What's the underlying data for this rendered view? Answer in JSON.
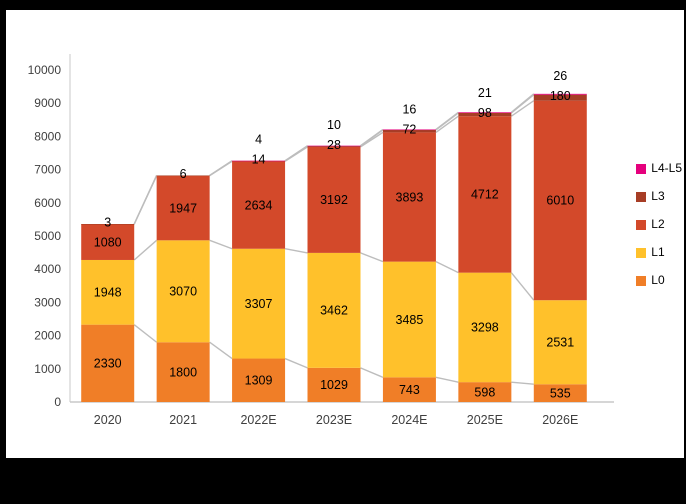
{
  "colors": {
    "page_background": "#000000",
    "panel_background": "#ffffff",
    "connector_line": "#bdbdbd",
    "axis_line": "#c8c8c8",
    "tick_text": "#3f3f3f",
    "value_text": "#000000"
  },
  "chart_data": {
    "type": "bar",
    "subtype": "stacked-column",
    "title": "",
    "xlabel": "",
    "ylabel": "",
    "categories": [
      "2020",
      "2021",
      "2022E",
      "2023E",
      "2024E",
      "2025E",
      "2026E"
    ],
    "series": [
      {
        "name": "L0",
        "color": "#f07e27",
        "values": [
          2330,
          1800,
          1309,
          1029,
          743,
          598,
          535
        ]
      },
      {
        "name": "L1",
        "color": "#ffc12b",
        "values": [
          1948,
          3070,
          3307,
          3462,
          3485,
          3298,
          2531
        ]
      },
      {
        "name": "L2",
        "color": "#d3492a",
        "values": [
          1080,
          1947,
          2634,
          3192,
          3893,
          4712,
          6010
        ]
      },
      {
        "name": "L3",
        "color": "#a73d25",
        "values": [
          3,
          6,
          14,
          28,
          72,
          98,
          180
        ]
      },
      {
        "name": "L4-L5",
        "color": "#e5007d",
        "values": [
          0,
          0,
          4,
          10,
          16,
          21,
          26
        ]
      }
    ],
    "labels": {
      "inside_series": [
        "L0",
        "L1",
        "L2"
      ],
      "above_series": [
        "L3",
        "L4-L5"
      ]
    },
    "y_axis": {
      "min": 0,
      "max": 10000,
      "step": 1000,
      "tick_labels": [
        "0",
        "1000",
        "2000",
        "3000",
        "4000",
        "5000",
        "6000",
        "7000",
        "8000",
        "9000",
        "10000"
      ]
    },
    "legend": {
      "position": "right",
      "entries": [
        "L4-L5",
        "L3",
        "L2",
        "L1",
        "L0"
      ]
    },
    "grid": false,
    "connector_lines": true
  }
}
